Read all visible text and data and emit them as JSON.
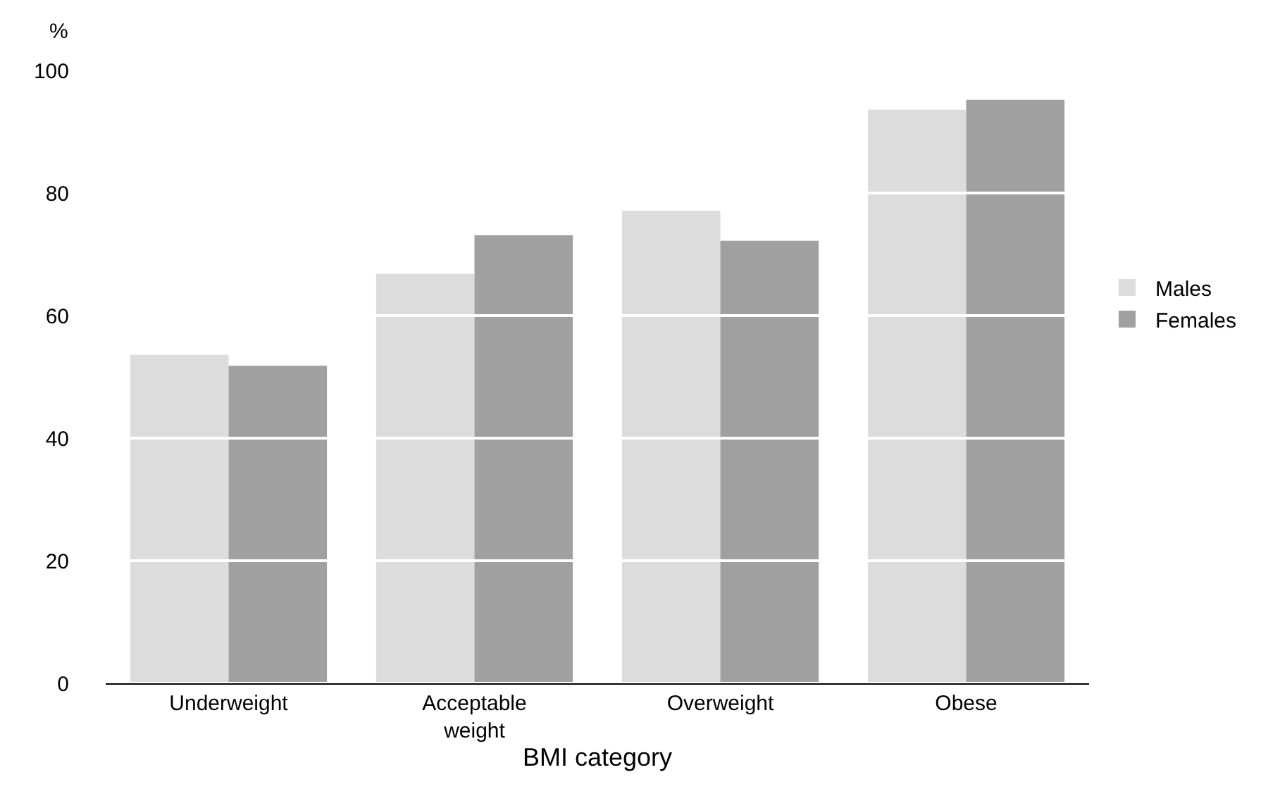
{
  "chart_data": {
    "type": "bar",
    "xlabel": "BMI category",
    "ylabel": "%",
    "categories": [
      "Underweight",
      "Acceptable\nweight",
      "Overweight",
      "Obese"
    ],
    "series": [
      {
        "name": "Males",
        "color": "#dcdcdc",
        "values": [
          53.6,
          66.8,
          77.1,
          93.6
        ]
      },
      {
        "name": "Females",
        "color": "#a0a0a0",
        "values": [
          51.8,
          73.1,
          72.2,
          95.2
        ]
      }
    ],
    "ylim": [
      0,
      100
    ],
    "yticks": [
      0,
      20,
      40,
      60,
      80,
      100
    ],
    "grid": "y",
    "legend": "right"
  }
}
